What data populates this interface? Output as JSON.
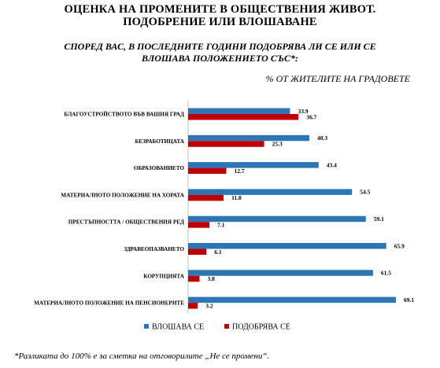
{
  "header": {
    "title_line1": "ОЦЕНКА НА ПРОМЕНИТЕ В ОБЩЕСТВЕНИЯ ЖИВОТ.",
    "title_line2": "ПОДОБРЕНИЕ ИЛИ ВЛОШАВАНЕ",
    "question_line1": "СПОРЕД ВАС, В ПОСЛЕДНИТЕ ГОДИНИ ПОДОБРЯВА ЛИ СЕ ИЛИ СЕ",
    "question_line2": "ВЛОШАВА ПОЛОЖЕНИЕТО СЪС*:",
    "base": "% ОТ ЖИТЕЛИТЕ НА ГРАДОВЕТЕ"
  },
  "footnote": "*Разликата до 100% е за сметка на отговорилите „Не се промени“.",
  "chart_data": {
    "type": "bar",
    "orientation": "horizontal",
    "categories": [
      "БЛАГОУСТРОЙСТВОТО ВЪВ ВАШИЯ ГРАД",
      "БЕЗРАБОТИЦАТА",
      "ОБРАЗОВАНИЕТО",
      "МАТЕРИАЛНОТО ПОЛОЖЕНИЕ НА ХОРАТА",
      "ПРЕСТЪПНОСТТА / ОБЩЕСТВЕНИЯ РЕД",
      "ЗДРАВЕОПАЗВАНЕТО",
      "КОРУПЦИЯТА",
      "МАТЕРИАЛНОТО ПОЛОЖЕНИЕ НА ПЕНСИОНЕРИТЕ"
    ],
    "series": [
      {
        "name": "ВЛОШАВА СЕ",
        "color": "#2e75b6",
        "values": [
          33.9,
          40.3,
          43.4,
          54.5,
          59.1,
          65.9,
          61.5,
          69.1
        ]
      },
      {
        "name": "ПОДОБРЯВА СЕ",
        "color": "#c00000",
        "values": [
          36.7,
          25.3,
          12.7,
          11.8,
          7.1,
          6.1,
          3.8,
          3.2
        ]
      }
    ],
    "xlim": [
      0,
      75
    ],
    "grid": false,
    "legend_position": "bottom"
  }
}
